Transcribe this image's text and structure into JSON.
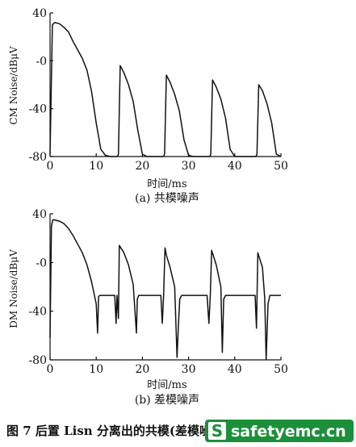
{
  "chart_data": [
    {
      "type": "line",
      "title": "",
      "subtitle": "(a) 共模噪声",
      "xlabel": "时间/ms",
      "ylabel": "CM Noise/dBμV",
      "xlim": [
        0,
        50
      ],
      "ylim": [
        -80,
        40
      ],
      "xticks": [
        "0",
        "10",
        "20",
        "30",
        "40",
        "50"
      ],
      "yticks": [
        "40",
        "-0",
        "-40",
        "-80"
      ],
      "grid": false,
      "series": [
        {
          "x": [
            0,
            0.5,
            1,
            2,
            3,
            4,
            5,
            6,
            7,
            8,
            9,
            10,
            11,
            12,
            13,
            14,
            14.6,
            14.8,
            15.2,
            16,
            17,
            18,
            19,
            20,
            21,
            22,
            24,
            24.6,
            24.8,
            25.2,
            26,
            27,
            28,
            29,
            30,
            31,
            32,
            34,
            34.6,
            34.8,
            35.2,
            36,
            37,
            38,
            39,
            40,
            41,
            42,
            44,
            44.6,
            44.8,
            45.2,
            46,
            47,
            48,
            49,
            50
          ],
          "y": [
            -78,
            30,
            32,
            31,
            28,
            24,
            16,
            9,
            2,
            -8,
            -26,
            -52,
            -74,
            -79,
            -80,
            -80,
            -80,
            -78,
            -4,
            -10,
            -20,
            -34,
            -58,
            -78,
            -80,
            -80,
            -80,
            -80,
            -78,
            -12,
            -18,
            -28,
            -42,
            -66,
            -79,
            -80,
            -80,
            -80,
            -80,
            -78,
            -16,
            -22,
            -32,
            -48,
            -74,
            -80,
            -80,
            -80,
            -80,
            -80,
            -78,
            -20,
            -25,
            -36,
            -52,
            -78,
            -80
          ]
        }
      ]
    },
    {
      "type": "line",
      "title": "",
      "subtitle": "(b) 差模噪声",
      "xlabel": "时间/ms",
      "ylabel": "DM Noise/dBμV",
      "xlim": [
        0,
        50
      ],
      "ylim": [
        -80,
        40
      ],
      "xticks": [
        "0",
        "10",
        "20",
        "30",
        "40",
        "50"
      ],
      "yticks": [
        "40",
        "-0",
        "-40",
        "-80"
      ],
      "grid": false,
      "series": [
        {
          "x": [
            0,
            0.3,
            0.6,
            1,
            2,
            3,
            4,
            5,
            6,
            7,
            8,
            9,
            10,
            10.3,
            10.5,
            10.8,
            11.5,
            12,
            13,
            14,
            14.3,
            14.5,
            14.8,
            15,
            16,
            17,
            18,
            18.7,
            18.9,
            19.2,
            20,
            22,
            24,
            24.3,
            24.6,
            24.9,
            25.2,
            26,
            27,
            27.5,
            27.8,
            28.1,
            28.5,
            30,
            32,
            34,
            34.4,
            34.7,
            35,
            36,
            37,
            37.3,
            37.6,
            38,
            40,
            43,
            44.4,
            44.7,
            45,
            46,
            46.5,
            46.8,
            47.2,
            47.6,
            50
          ],
          "y": [
            -62,
            30,
            35,
            35,
            34,
            32,
            28,
            22,
            15,
            8,
            -2,
            -16,
            -34,
            -58,
            -28,
            -27,
            -27,
            -27,
            -27,
            -27,
            -50,
            -27,
            -46,
            14,
            8,
            -2,
            -18,
            -58,
            -30,
            -27,
            -27,
            -27,
            -27,
            -50,
            -27,
            12,
            6,
            -4,
            -20,
            -78,
            -52,
            -30,
            -27,
            -27,
            -27,
            -27,
            -50,
            -27,
            10,
            -2,
            -20,
            -74,
            -30,
            -27,
            -27,
            -27,
            -27,
            -54,
            8,
            -4,
            -30,
            -80,
            -34,
            -27,
            -27
          ]
        }
      ]
    }
  ],
  "caption": "图 7 后置 Lisn 分离出的共模(差模噪声)",
  "watermark": {
    "badge": "S",
    "text": "safetyemc.cn",
    "color": "#1c8f3a"
  }
}
